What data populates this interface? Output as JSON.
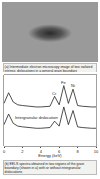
{
  "figure": {
    "image_caption": "(a) Intermediate electron microscopy image of two isolated intrinsic dislocations in a general grain boundary",
    "chart_caption": "(b) EELS spectra obtained in two regions of the grain boundary (shown in a) with or without intergranular dislocations"
  },
  "chart_data": {
    "type": "line",
    "x_label": "Energy (keV)",
    "x": [
      0,
      0.5,
      1,
      1.5,
      2,
      2.5,
      3,
      3.5,
      4,
      4.5,
      5,
      5.5,
      6,
      6.5,
      7,
      7.5,
      8,
      8.5,
      9,
      9.5,
      10
    ],
    "series": [
      {
        "name": "Intergranular dislocation",
        "color": "#222222",
        "values": [
          60,
          75,
          62,
          58,
          57,
          56,
          55,
          55,
          55,
          55,
          56,
          70,
          58,
          85,
          60,
          80,
          57,
          56,
          55,
          55,
          55
        ]
      },
      {
        "color": "#222222",
        "values": [
          30,
          45,
          32,
          28,
          27,
          26,
          25,
          25,
          25,
          25,
          26,
          35,
          28,
          55,
          30,
          50,
          27,
          26,
          25,
          25,
          25
        ]
      }
    ],
    "annotations": [
      {
        "text": "Cr",
        "x": 5.5,
        "y": 74
      },
      {
        "text": "Fe",
        "x": 6.5,
        "y": 90
      },
      {
        "text": "Ni",
        "x": 7.5,
        "y": 85
      },
      {
        "text": "Intergranular dislocation",
        "x": 3.5,
        "y": 40
      }
    ],
    "xlim": [
      0,
      10
    ],
    "xticks": [
      0,
      2,
      4,
      6,
      8,
      10
    ],
    "ylim": [
      0,
      100
    ],
    "yticks": [],
    "tick_labels": "x",
    "grid": false
  }
}
